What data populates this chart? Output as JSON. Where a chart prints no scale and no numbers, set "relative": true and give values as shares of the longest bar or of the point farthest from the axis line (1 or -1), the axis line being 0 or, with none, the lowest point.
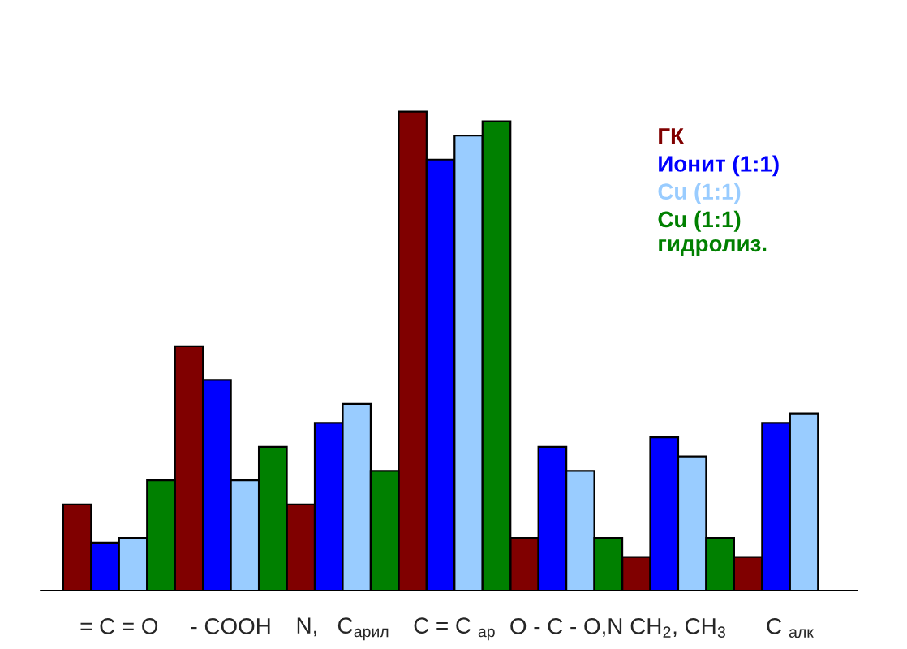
{
  "chart_data": {
    "type": "bar",
    "relative": true,
    "categories": [
      "= C = O",
      "- COOH",
      "N,   C$_{арил}$",
      "C = C $_{ар}$",
      "O - C - O,N",
      "CH$_{2}$, CH$_{3}$",
      "C $_{алк}$"
    ],
    "series": [
      {
        "name": "ГК",
        "color": "#800000",
        "values": [
          0.18,
          0.51,
          0.18,
          1.0,
          0.11,
          0.07,
          0.07
        ]
      },
      {
        "name": "Ионит (1:1)",
        "color": "#0000ff",
        "values": [
          0.1,
          0.44,
          0.35,
          0.9,
          0.3,
          0.32,
          0.35
        ]
      },
      {
        "name": "Cu (1:1)",
        "color": "#99ccff",
        "values": [
          0.11,
          0.23,
          0.39,
          0.95,
          0.25,
          0.28,
          0.37
        ]
      },
      {
        "name": "Cu (1:1)\nгидролиз.",
        "color": "#008000",
        "values": [
          0.23,
          0.3,
          0.25,
          0.98,
          0.11,
          0.11,
          null
        ]
      }
    ],
    "legend": "top right",
    "grid": false
  }
}
